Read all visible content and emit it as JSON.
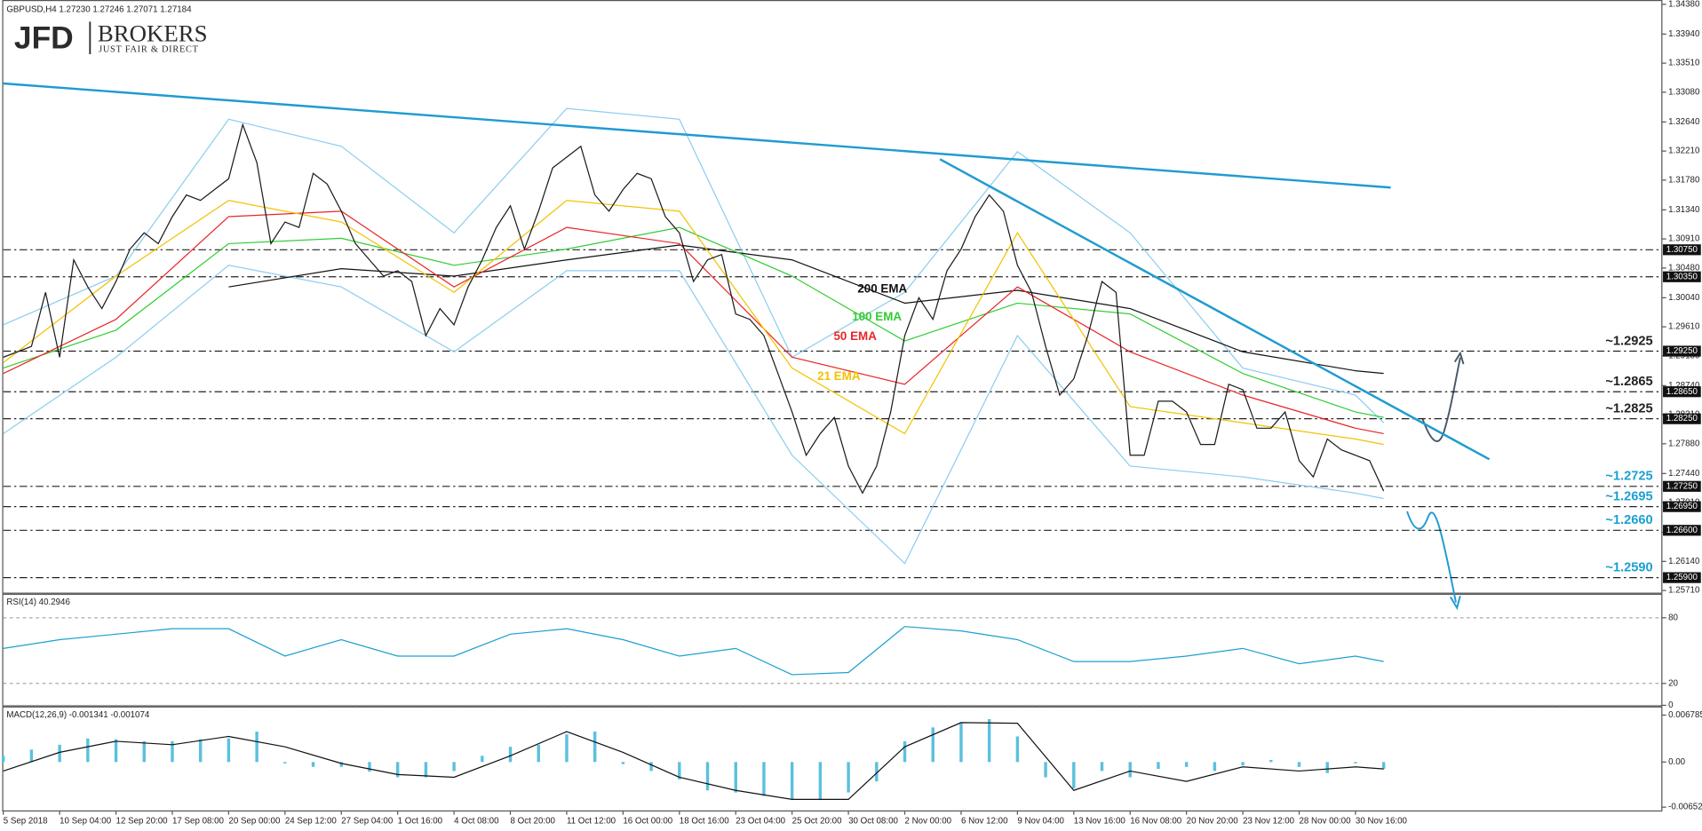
{
  "logo": {
    "name": "JFD",
    "word": "BROKERS",
    "tagline": "JUST FAIR & DIRECT"
  },
  "chart_data": [
    {
      "type": "line",
      "title": "GBPUSD,H4  1.27230 1.27246 1.27071 1.27184",
      "xlim": [
        0,
        471
      ],
      "ylim": [
        1.2571,
        1.3438
      ],
      "yticks": [
        {
          "value": 1.3438,
          "label": "1.34380"
        },
        {
          "value": 1.3394,
          "label": "1.33940"
        },
        {
          "value": 1.3351,
          "label": "1.33510"
        },
        {
          "value": 1.3308,
          "label": "1.33080"
        },
        {
          "value": 1.3264,
          "label": "1.32640"
        },
        {
          "value": 1.3221,
          "label": "1.32210"
        },
        {
          "value": 1.3178,
          "label": "1.31780"
        },
        {
          "value": 1.3134,
          "label": "1.31340"
        },
        {
          "value": 1.3091,
          "label": "1.30910"
        },
        {
          "value": 1.3048,
          "label": "1.30480"
        },
        {
          "value": 1.3004,
          "label": "1.30040"
        },
        {
          "value": 1.2961,
          "label": "1.29610"
        },
        {
          "value": 1.2918,
          "label": "1.29180"
        },
        {
          "value": 1.2874,
          "label": "1.28740"
        },
        {
          "value": 1.2831,
          "label": "1.28310"
        },
        {
          "value": 1.2788,
          "label": "1.27880"
        },
        {
          "value": 1.2744,
          "label": "1.27440"
        },
        {
          "value": 1.2701,
          "label": "1.27010"
        },
        {
          "value": 1.2657,
          "label": "1.26570"
        },
        {
          "value": 1.2614,
          "label": "1.26140"
        },
        {
          "value": 1.2571,
          "label": "1.25710"
        }
      ],
      "levels": [
        {
          "value": 1.3075,
          "label": "1.30750"
        },
        {
          "value": 1.3035,
          "label": "1.30350"
        },
        {
          "value": 1.2925,
          "label": "1.29250",
          "note": "~1.2925",
          "note_color": "#222222"
        },
        {
          "value": 1.2865,
          "label": "1.28650",
          "note": "~1.2865",
          "note_color": "#222222"
        },
        {
          "value": 1.2825,
          "label": "1.28250",
          "note": "~1.2825",
          "note_color": "#222222"
        },
        {
          "value": 1.2725,
          "label": "1.27250",
          "note": "~1.2725",
          "note_color": "#1ca0d0"
        },
        {
          "value": 1.2695,
          "label": "1.26950",
          "note": "~1.2695",
          "note_color": "#1ca0d0"
        },
        {
          "value": 1.266,
          "label": "1.26600",
          "note": "~1.2660",
          "note_color": "#1ca0d0"
        },
        {
          "value": 1.259,
          "label": "1.25900",
          "note": "~1.2590",
          "note_color": "#1ca0d0"
        }
      ],
      "trendlines": [
        {
          "color": "#1f9bd1",
          "x": [
            0,
            394
          ],
          "values": [
            1.3321,
            1.3167
          ]
        },
        {
          "color": "#1f9bd1",
          "x": [
            266,
            422
          ],
          "values": [
            1.3209,
            1.2765
          ]
        }
      ],
      "series": [
        {
          "type": "line",
          "color": "#8ccdef",
          "x": [
            0,
            32,
            64,
            96,
            128,
            160,
            192,
            224,
            256,
            288,
            320,
            352,
            384,
            392
          ],
          "values": [
            1.2964,
            1.3036,
            1.3268,
            1.3228,
            1.31,
            1.3284,
            1.3268,
            1.2916,
            1.3012,
            1.322,
            1.31,
            1.29,
            1.286,
            1.2819
          ]
        },
        {
          "type": "line",
          "color": "#8ccdef",
          "x": [
            0,
            32,
            64,
            96,
            128,
            160,
            192,
            224,
            256,
            288,
            320,
            352,
            384,
            392
          ],
          "values": [
            1.2803,
            1.2916,
            1.3052,
            1.302,
            1.2924,
            1.3044,
            1.3044,
            1.2771,
            1.2611,
            1.2948,
            1.2755,
            1.2739,
            1.2715,
            1.2707
          ]
        },
        {
          "type": "line",
          "name": "200 EMA",
          "color": "#111111",
          "x": [
            0,
            32,
            64,
            96,
            128,
            160,
            192,
            224,
            256,
            288,
            320,
            352,
            384,
            392
          ],
          "values": [
            null,
            null,
            1.302,
            1.3047,
            1.3036,
            1.306,
            1.3082,
            1.306,
            1.2996,
            1.3015,
            1.2988,
            1.2924,
            1.2896,
            1.2892
          ]
        },
        {
          "type": "line",
          "name": "100 EMA",
          "color": "#33cc33",
          "x": [
            0,
            32,
            64,
            96,
            128,
            160,
            192,
            224,
            256,
            288,
            320,
            352,
            384,
            392
          ],
          "values": [
            1.29,
            1.2956,
            1.3084,
            1.3092,
            1.3052,
            1.3076,
            1.3108,
            1.3036,
            1.294,
            1.2996,
            1.298,
            1.2892,
            1.2835,
            1.2827
          ]
        },
        {
          "type": "line",
          "name": "50 EMA",
          "color": "#e8262a",
          "x": [
            0,
            32,
            64,
            96,
            128,
            160,
            192,
            224,
            256,
            288,
            320,
            352,
            384,
            392
          ],
          "values": [
            1.2892,
            1.2972,
            1.3124,
            1.3132,
            1.302,
            1.3108,
            1.3084,
            1.2916,
            1.2876,
            1.302,
            1.2924,
            1.286,
            1.2811,
            1.2803
          ]
        },
        {
          "type": "line",
          "name": "21 EMA",
          "color": "#f2c200",
          "x": [
            0,
            32,
            64,
            96,
            128,
            160,
            192,
            224,
            256,
            288,
            320,
            352,
            384,
            392
          ],
          "values": [
            1.2908,
            1.3036,
            1.3148,
            1.3116,
            1.3012,
            1.3148,
            1.3132,
            1.29,
            1.2803,
            1.31,
            1.2843,
            1.2819,
            1.2795,
            1.2787
          ]
        },
        {
          "type": "line",
          "color": "#1a1a1a",
          "x": [
            0,
            4,
            8,
            12,
            16,
            20,
            24,
            28,
            32,
            36,
            40,
            44,
            48,
            52,
            56,
            60,
            64,
            68,
            72,
            76,
            80,
            84,
            88,
            92,
            96,
            100,
            104,
            108,
            112,
            116,
            120,
            124,
            128,
            132,
            136,
            140,
            144,
            148,
            152,
            156,
            160,
            164,
            168,
            172,
            176,
            180,
            184,
            188,
            192,
            196,
            200,
            204,
            208,
            212,
            216,
            220,
            224,
            228,
            232,
            236,
            240,
            244,
            248,
            252,
            256,
            260,
            264,
            268,
            272,
            276,
            280,
            284,
            288,
            292,
            296,
            300,
            304,
            308,
            312,
            316,
            320,
            324,
            328,
            332,
            336,
            340,
            344,
            348,
            352,
            356,
            360,
            364,
            368,
            372,
            376,
            380,
            384,
            388,
            392
          ],
          "values": [
            1.2916,
            1.2924,
            1.2932,
            1.3012,
            1.2916,
            1.306,
            1.302,
            1.2988,
            1.3028,
            1.3076,
            1.31,
            1.3084,
            1.3124,
            1.3156,
            1.3148,
            1.3164,
            1.318,
            1.326,
            1.3204,
            1.3084,
            1.3116,
            1.3108,
            1.3188,
            1.3172,
            1.3132,
            1.3084,
            1.306,
            1.3036,
            1.3044,
            1.3028,
            1.2948,
            1.2988,
            1.2964,
            1.302,
            1.306,
            1.3108,
            1.314,
            1.3076,
            1.3132,
            1.3196,
            1.3212,
            1.3228,
            1.3156,
            1.3132,
            1.3164,
            1.3188,
            1.318,
            1.3124,
            1.31,
            1.3028,
            1.306,
            1.3068,
            1.298,
            1.2972,
            1.2948,
            1.2892,
            1.2835,
            1.2771,
            1.2803,
            1.2827,
            1.2755,
            1.2715,
            1.2755,
            1.2835,
            1.2948,
            1.3004,
            1.2972,
            1.3044,
            1.3076,
            1.3124,
            1.3156,
            1.3132,
            1.3052,
            1.3012,
            1.2932,
            1.286,
            1.2884,
            1.2948,
            1.3028,
            1.3012,
            1.2771,
            1.2771,
            1.2851,
            1.2851,
            1.2835,
            1.2787,
            1.2787,
            1.2876,
            1.2868,
            1.2811,
            1.2811,
            1.2835,
            1.2763,
            1.2739,
            1.2795,
            1.2779,
            1.2771,
            1.2763,
            1.2718
          ]
        }
      ]
    },
    {
      "type": "line",
      "title": "RSI(14) 40.2946",
      "xlim": [
        0,
        471
      ],
      "ylim": [
        0,
        100
      ],
      "yticks": [
        0,
        20,
        80
      ],
      "grid": true,
      "series": [
        {
          "type": "line",
          "color": "#1ca0d0",
          "x": [
            0,
            16,
            32,
            48,
            64,
            80,
            96,
            112,
            128,
            144,
            160,
            176,
            192,
            208,
            224,
            240,
            256,
            272,
            288,
            304,
            320,
            336,
            352,
            368,
            384,
            392
          ],
          "values": [
            52,
            60,
            65,
            70,
            70,
            45,
            60,
            45,
            45,
            65,
            70,
            60,
            45,
            52,
            28,
            30,
            72,
            68,
            60,
            40,
            40,
            45,
            52,
            38,
            45,
            40
          ]
        }
      ]
    },
    {
      "type": "bar",
      "title": "MACD(12,26,9) -0.001341 -0.001074",
      "xlim": [
        0,
        471
      ],
      "ylim": [
        -0.006523,
        0.006785
      ],
      "yticks": [
        -0.006523,
        {
          "value": 0,
          "label": "0.00"
        },
        0.006785
      ],
      "xticks": [
        {
          "value": 0,
          "label": "5 Sep 2018"
        },
        {
          "value": 16,
          "label": "10 Sep 04:00"
        },
        {
          "value": 32,
          "label": "12 Sep 20:00"
        },
        {
          "value": 48,
          "label": "17 Sep 08:00"
        },
        {
          "value": 64,
          "label": "20 Sep 00:00"
        },
        {
          "value": 80,
          "label": "24 Sep 12:00"
        },
        {
          "value": 96,
          "label": "27 Sep 04:00"
        },
        {
          "value": 112,
          "label": "1 Oct 16:00"
        },
        {
          "value": 128,
          "label": "4 Oct 08:00"
        },
        {
          "value": 144,
          "label": "8 Oct 20:00"
        },
        {
          "value": 160,
          "label": "11 Oct 12:00"
        },
        {
          "value": 176,
          "label": "16 Oct 00:00"
        },
        {
          "value": 192,
          "label": "18 Oct 16:00"
        },
        {
          "value": 208,
          "label": "23 Oct 04:00"
        },
        {
          "value": 224,
          "label": "25 Oct 20:00"
        },
        {
          "value": 240,
          "label": "30 Oct 08:00"
        },
        {
          "value": 256,
          "label": "2 Nov 00:00"
        },
        {
          "value": 272,
          "label": "6 Nov 12:00"
        },
        {
          "value": 288,
          "label": "9 Nov 04:00"
        },
        {
          "value": 304,
          "label": "13 Nov 16:00"
        },
        {
          "value": 320,
          "label": "16 Nov 08:00"
        },
        {
          "value": 336,
          "label": "20 Nov 20:00"
        },
        {
          "value": 352,
          "label": "23 Nov 12:00"
        },
        {
          "value": 368,
          "label": "28 Nov 00:00"
        },
        {
          "value": 384,
          "label": "30 Nov 16:00"
        }
      ],
      "series": [
        {
          "type": "bar",
          "color": "#5bc0de",
          "x": [
            0,
            8,
            16,
            24,
            32,
            40,
            48,
            56,
            64,
            72,
            80,
            88,
            96,
            104,
            112,
            120,
            128,
            136,
            144,
            152,
            160,
            168,
            176,
            184,
            192,
            200,
            208,
            216,
            224,
            232,
            240,
            248,
            256,
            264,
            272,
            280,
            288,
            296,
            304,
            312,
            320,
            328,
            336,
            344,
            352,
            360,
            368,
            376,
            384,
            392
          ],
          "values": [
            0.0009,
            0.0018,
            0.0025,
            0.0034,
            0.0033,
            0.003,
            0.003,
            0.0033,
            0.0034,
            0.0044,
            -0.0002,
            -0.0007,
            -0.0007,
            -0.0014,
            -0.0022,
            -0.0022,
            -0.0013,
            0.0009,
            0.0022,
            0.0025,
            0.004,
            0.0044,
            -0.0003,
            -0.0013,
            -0.0025,
            -0.0041,
            -0.0044,
            -0.0049,
            -0.0054,
            -0.0054,
            -0.0044,
            -0.0028,
            0.003,
            0.005,
            0.0057,
            0.0062,
            0.0037,
            -0.0022,
            -0.0038,
            -0.0013,
            -0.0022,
            -0.001,
            -0.0007,
            -0.0013,
            -0.0005,
            0.0003,
            -0.0007,
            -0.0016,
            -0.0002,
            -0.001
          ]
        },
        {
          "type": "line",
          "color": "#111111",
          "x": [
            0,
            16,
            32,
            48,
            64,
            80,
            96,
            112,
            128,
            144,
            160,
            176,
            192,
            208,
            224,
            240,
            256,
            272,
            288,
            304,
            320,
            336,
            352,
            368,
            384,
            392
          ],
          "values": [
            -0.0013,
            0.0014,
            0.003,
            0.0025,
            0.0037,
            0.0022,
            -0.0002,
            -0.0018,
            -0.0022,
            0.0009,
            0.0044,
            0.0014,
            -0.0022,
            -0.0041,
            -0.0054,
            -0.0054,
            0.0022,
            0.0057,
            0.0056,
            -0.0041,
            -0.0013,
            -0.0028,
            -0.0007,
            -0.0013,
            -0.0007,
            -0.001
          ]
        }
      ]
    }
  ]
}
